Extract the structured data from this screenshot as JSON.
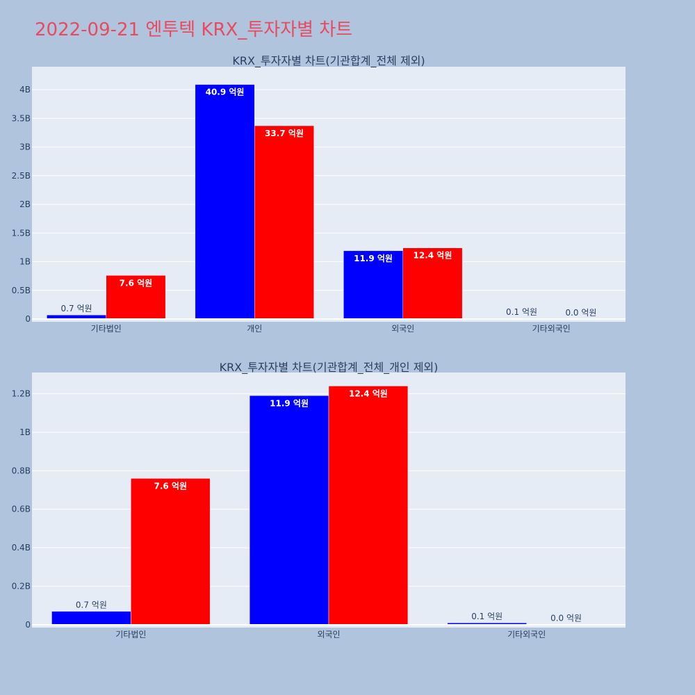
{
  "page_title": "2022-09-21 엔투텍 KRX_투자자별 차트",
  "colors": {
    "buy": "#0000ff",
    "sell": "#ff0000",
    "plot_bg": "#e5ecf6",
    "page_bg": "#b0c4de",
    "title": "#e84a5f"
  },
  "chart_data": [
    {
      "type": "bar",
      "title": "KRX_투자자별 차트(기관합계_전체 제외)",
      "categories": [
        "기타법인",
        "개인",
        "외국인",
        "기타외국인"
      ],
      "series": [
        {
          "color": "#0000ff",
          "values": [
            70000000,
            4090000000,
            1190000000,
            10000000
          ],
          "labels": [
            "0.7 억원",
            "40.9 억원",
            "11.9 억원",
            "0.1 억원"
          ]
        },
        {
          "color": "#ff0000",
          "values": [
            760000000,
            3370000000,
            1240000000,
            2000000
          ],
          "labels": [
            "7.6 억원",
            "33.7 억원",
            "12.4 억원",
            "0.0 억원"
          ]
        }
      ],
      "ylim": [
        0,
        4400000000
      ],
      "yticks": [
        0,
        500000000,
        1000000000,
        1500000000,
        2000000000,
        2500000000,
        3000000000,
        3500000000,
        4000000000
      ],
      "yticklabels": [
        "0",
        "0.5B",
        "1B",
        "1.5B",
        "2B",
        "2.5B",
        "3B",
        "3.5B",
        "4B"
      ],
      "grid": true
    },
    {
      "type": "bar",
      "title": "KRX_투자자별 차트(기관합계_전체_개인 제외)",
      "categories": [
        "기타법인",
        "외국인",
        "기타외국인"
      ],
      "series": [
        {
          "color": "#0000ff",
          "values": [
            70000000,
            1190000000,
            10000000
          ],
          "labels": [
            "0.7 억원",
            "11.9 억원",
            "0.1 억원"
          ]
        },
        {
          "color": "#ff0000",
          "values": [
            760000000,
            1240000000,
            2000000
          ],
          "labels": [
            "7.6 억원",
            "12.4 억원",
            "0.0 억원"
          ]
        }
      ],
      "ylim": [
        0,
        1310000000
      ],
      "yticks": [
        0,
        200000000,
        400000000,
        600000000,
        800000000,
        1000000000,
        1200000000
      ],
      "yticklabels": [
        "0",
        "0.2B",
        "0.4B",
        "0.6B",
        "0.8B",
        "1B",
        "1.2B"
      ],
      "grid": true
    }
  ]
}
